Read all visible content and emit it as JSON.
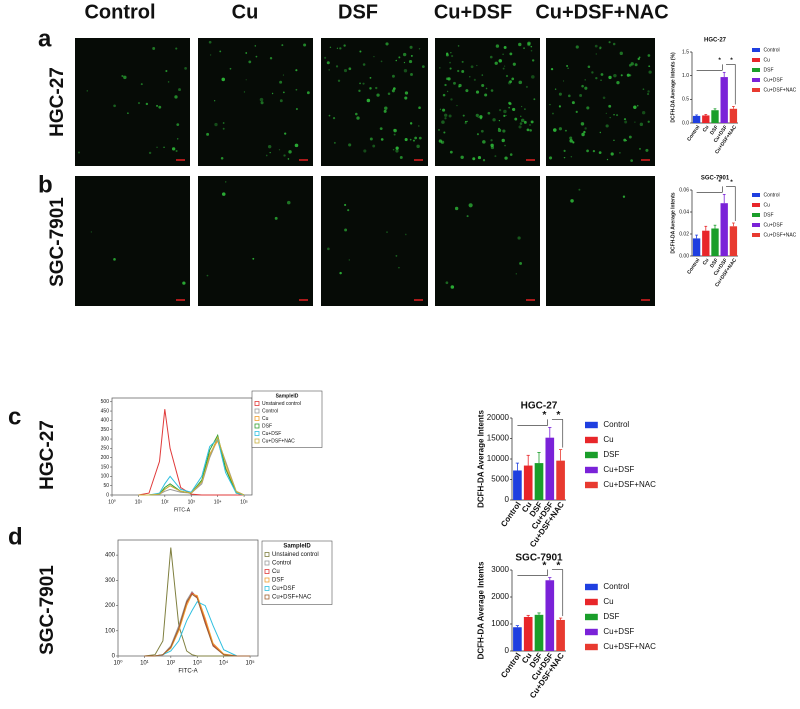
{
  "panel_labels": [
    "a",
    "b",
    "c",
    "d"
  ],
  "column_labels": [
    "Control",
    "Cu",
    "DSF",
    "Cu+DSF",
    "Cu+DSF+NAC"
  ],
  "row_labels": [
    "HGC-27",
    "SGC-7901",
    "HGC-27",
    "SGC-7901"
  ],
  "chart_data": [
    {
      "type": "bar",
      "title": "HGC-27",
      "ylabel": "DCFH-DA Average Intents (%)",
      "categories": [
        "Control",
        "Cu",
        "DSF",
        "Cu+DSF",
        "Cu+DSF+NAC"
      ],
      "values": [
        0.15,
        0.16,
        0.27,
        0.97,
        0.3
      ],
      "errors": [
        0.02,
        0.02,
        0.03,
        0.1,
        0.05
      ],
      "colors": [
        "#1f3fe0",
        "#e8262a",
        "#1a9e2a",
        "#7a22d8",
        "#e83a30"
      ],
      "ylim": [
        0,
        1.5
      ],
      "yticks": [
        {
          "value": 0,
          "label": "0.0"
        },
        0.5,
        {
          "value": 1,
          "label": "1.0"
        },
        1.5
      ],
      "annotations": [
        "*",
        "*"
      ]
    },
    {
      "type": "bar",
      "title": "SGC-7901",
      "ylabel": "DCFH-DA Average Intents",
      "categories": [
        "Control",
        "Cu",
        "DSF",
        "Cu+DSF",
        "Cu+DSF+NAC"
      ],
      "values": [
        0.016,
        0.023,
        0.025,
        0.048,
        0.027
      ],
      "errors": [
        0.003,
        0.004,
        0.003,
        0.008,
        0.003
      ],
      "colors": [
        "#1f3fe0",
        "#e8262a",
        "#1a9e2a",
        "#7a22d8",
        "#e83a30"
      ],
      "ylim": [
        0,
        0.06
      ],
      "yticks": [
        {
          "value": 0,
          "label": "0.00"
        },
        {
          "value": 0.02,
          "label": "0.02"
        },
        {
          "value": 0.04,
          "label": "0.04"
        },
        {
          "value": 0.06,
          "label": "0.06"
        }
      ],
      "annotations": [
        "*",
        "*"
      ]
    },
    {
      "type": "line",
      "xlabel": "FITC-A",
      "legend_title": "SampleID",
      "x": [
        1.0,
        1.4,
        1.8,
        2.0,
        2.2,
        2.6,
        3.0,
        3.4,
        3.7,
        4.0,
        4.3,
        4.7,
        5.0
      ],
      "series": [
        {
          "name": "Unstained control",
          "color": "#e03a3a",
          "values": [
            0,
            10,
            180,
            460,
            250,
            40,
            5,
            0,
            0,
            0,
            0,
            0,
            0
          ]
        },
        {
          "name": "Control",
          "color": "#9a9a9a",
          "values": [
            0,
            0,
            5,
            20,
            30,
            15,
            10,
            60,
            200,
            300,
            180,
            20,
            0
          ]
        },
        {
          "name": "Cu",
          "color": "#f0a030",
          "values": [
            0,
            0,
            5,
            30,
            50,
            20,
            10,
            70,
            220,
            290,
            150,
            15,
            0
          ]
        },
        {
          "name": "DSF",
          "color": "#30a030",
          "values": [
            0,
            0,
            5,
            40,
            60,
            20,
            10,
            80,
            240,
            320,
            140,
            10,
            0
          ]
        },
        {
          "name": "Cu+DSF",
          "color": "#30c0e0",
          "values": [
            0,
            0,
            10,
            60,
            100,
            30,
            15,
            100,
            260,
            300,
            120,
            10,
            0
          ]
        },
        {
          "name": "Cu+DSF+NAC",
          "color": "#c8b040",
          "values": [
            0,
            0,
            5,
            30,
            50,
            20,
            10,
            70,
            210,
            310,
            170,
            20,
            0
          ]
        }
      ],
      "xlim": [
        0,
        5.3
      ],
      "xticks": [
        {
          "value": 0,
          "label": "10⁰"
        },
        {
          "value": 1,
          "label": "10¹"
        },
        {
          "value": 2,
          "label": "10²"
        },
        {
          "value": 3,
          "label": "10³"
        },
        {
          "value": 4,
          "label": "10⁴"
        },
        {
          "value": 5,
          "label": "10⁵"
        }
      ],
      "ylim": [
        0,
        520
      ],
      "yticks": [
        0,
        50,
        100,
        150,
        200,
        250,
        300,
        350,
        400,
        450,
        500
      ]
    },
    {
      "type": "line",
      "xlabel": "FITC-A",
      "legend_title": "SampleID",
      "x": [
        1.0,
        1.4,
        1.7,
        2.0,
        2.3,
        2.6,
        2.8,
        3.0,
        3.3,
        3.6,
        4.0,
        4.5,
        5.0
      ],
      "series": [
        {
          "name": "Unstained control",
          "color": "#808040",
          "values": [
            0,
            5,
            60,
            430,
            120,
            20,
            5,
            0,
            0,
            0,
            0,
            0,
            0
          ]
        },
        {
          "name": "Control",
          "color": "#9a9a9a",
          "values": [
            0,
            0,
            5,
            40,
            120,
            220,
            255,
            230,
            130,
            40,
            5,
            0,
            0
          ]
        },
        {
          "name": "Cu",
          "color": "#e03a3a",
          "values": [
            0,
            0,
            5,
            35,
            110,
            210,
            250,
            235,
            140,
            45,
            5,
            0,
            0
          ]
        },
        {
          "name": "DSF",
          "color": "#f0a030",
          "values": [
            0,
            0,
            5,
            30,
            100,
            200,
            245,
            240,
            150,
            50,
            8,
            0,
            0
          ]
        },
        {
          "name": "Cu+DSF",
          "color": "#30c0e0",
          "values": [
            0,
            0,
            5,
            20,
            60,
            140,
            180,
            215,
            200,
            120,
            25,
            0,
            0
          ]
        },
        {
          "name": "Cu+DSF+NAC",
          "color": "#a06030",
          "values": [
            0,
            0,
            5,
            35,
            110,
            215,
            245,
            230,
            130,
            40,
            5,
            0,
            0
          ]
        }
      ],
      "xlim": [
        0,
        5.3
      ],
      "xticks": [
        {
          "value": 0,
          "label": "10⁰"
        },
        {
          "value": 1,
          "label": "10¹"
        },
        {
          "value": 2,
          "label": "10²"
        },
        {
          "value": 3,
          "label": "10³"
        },
        {
          "value": 4,
          "label": "10⁴"
        },
        {
          "value": 5,
          "label": "10⁵"
        }
      ],
      "ylim": [
        0,
        460
      ],
      "yticks": [
        0,
        100,
        200,
        300,
        400
      ]
    },
    {
      "type": "bar",
      "title": "HGC-27",
      "ylabel": "DCFH-DA Average Intents",
      "categories": [
        "Control",
        "Cu",
        "DSF",
        "Cu+DSF",
        "Cu+DSF+NAC"
      ],
      "values": [
        7200,
        8400,
        9000,
        15200,
        9600
      ],
      "errors": [
        1800,
        2500,
        2600,
        2500,
        2700
      ],
      "colors": [
        "#1f3fe0",
        "#e8262a",
        "#1a9e2a",
        "#7a22d8",
        "#e83a30"
      ],
      "ylim": [
        0,
        20000
      ],
      "yticks": [
        0,
        5000,
        10000,
        15000,
        20000
      ],
      "annotations": [
        "*",
        "*"
      ]
    },
    {
      "type": "bar",
      "title": "SGC-7901",
      "ylabel": "DCFH-DA Average Intents",
      "categories": [
        "Control",
        "Cu",
        "DSF",
        "Cu+DSF",
        "Cu+DSF+NAC"
      ],
      "values": [
        880,
        1260,
        1340,
        2620,
        1150
      ],
      "errors": [
        60,
        60,
        70,
        100,
        70
      ],
      "colors": [
        "#1f3fe0",
        "#e8262a",
        "#1a9e2a",
        "#7a22d8",
        "#e83a30"
      ],
      "ylim": [
        0,
        3000
      ],
      "yticks": [
        0,
        1000,
        2000,
        3000
      ],
      "annotations": [
        "*",
        "*"
      ]
    }
  ]
}
